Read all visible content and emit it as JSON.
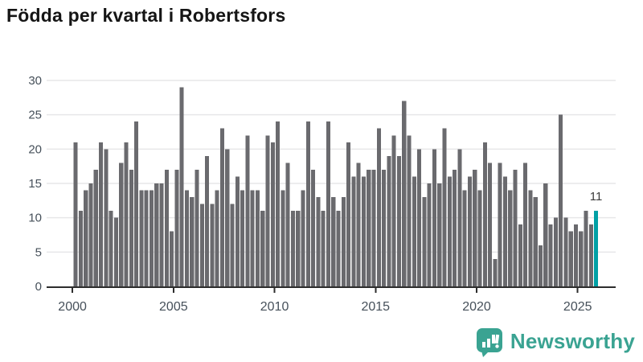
{
  "title": "Födda per kvartal i Robertsfors",
  "annotation": {
    "label": "11"
  },
  "logo": {
    "text": "Newsworthy"
  },
  "colors": {
    "bar": "#6a6a6e",
    "highlight": "#00a0a5",
    "logo_teal": "#3aa392",
    "axis_text": "#46505a",
    "baseline": "#2d2d2d",
    "gridline": "#e7e7e9",
    "annotation_text": "#3c3c3c",
    "title_text": "#151515"
  },
  "chart_data": {
    "type": "bar",
    "title": "Födda per kvartal i Robertsfors",
    "x_start_period": "2000Q1",
    "x_end_period": "2025Q4",
    "x_tick_labels": [
      "2000",
      "2005",
      "2010",
      "2015",
      "2020",
      "2025"
    ],
    "y_ticks": [
      0,
      5,
      10,
      15,
      20,
      25,
      30
    ],
    "ylim": [
      0,
      30
    ],
    "grid": "horizontal",
    "legend": "none",
    "highlight_index": 103,
    "highlight_value_label": "11",
    "values": [
      21,
      11,
      14,
      15,
      17,
      21,
      20,
      11,
      10,
      18,
      21,
      17,
      24,
      14,
      14,
      14,
      15,
      15,
      17,
      8,
      17,
      29,
      14,
      13,
      17,
      12,
      19,
      12,
      14,
      23,
      20,
      12,
      16,
      14,
      22,
      14,
      14,
      11,
      22,
      21,
      24,
      14,
      18,
      11,
      11,
      14,
      24,
      17,
      13,
      11,
      24,
      13,
      11,
      13,
      21,
      16,
      18,
      16,
      17,
      17,
      23,
      17,
      19,
      22,
      19,
      27,
      22,
      16,
      20,
      13,
      15,
      20,
      15,
      23,
      16,
      17,
      20,
      14,
      16,
      17,
      14,
      21,
      18,
      4,
      18,
      16,
      14,
      17,
      9,
      18,
      14,
      13,
      6,
      15,
      9,
      10,
      25,
      10,
      8,
      9,
      8,
      11,
      9,
      11
    ]
  }
}
